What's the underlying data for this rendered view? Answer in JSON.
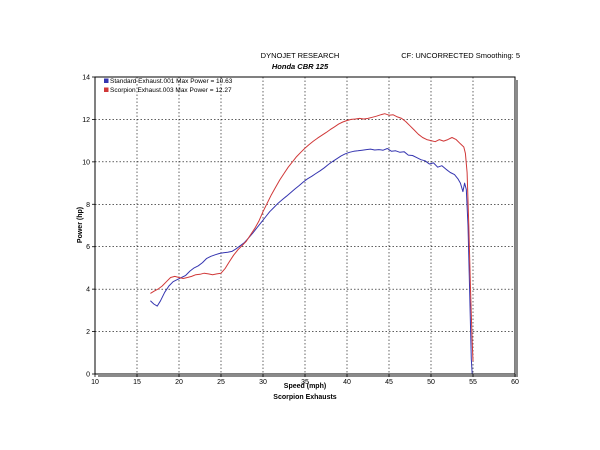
{
  "chart_data": {
    "type": "line",
    "title": "DYNOJET RESEARCH",
    "subtitle": "Honda CBR 125",
    "header_right": "CF: UNCORRECTED  Smoothing: 5",
    "footer": "Scorpion Exhausts",
    "xlabel": "Speed (mph)",
    "ylabel": "Power (hp)",
    "xlim": [
      10,
      60
    ],
    "ylim": [
      0,
      14
    ],
    "x_ticks": [
      "10",
      "15",
      "20",
      "25",
      "30",
      "35",
      "40",
      "45",
      "50",
      "55",
      "60"
    ],
    "y_ticks": [
      "0",
      "2",
      "4",
      "6",
      "8",
      "10",
      "12",
      "14"
    ],
    "grid": true,
    "legend_position": "top-left",
    "series": [
      {
        "name": "Standard Exhaust.001 Max Power = 10.63",
        "color": "#3535b0",
        "points": [
          [
            16.6,
            3.45
          ],
          [
            17.0,
            3.3
          ],
          [
            17.4,
            3.2
          ],
          [
            17.8,
            3.45
          ],
          [
            18.3,
            3.85
          ],
          [
            18.8,
            4.15
          ],
          [
            19.3,
            4.35
          ],
          [
            19.8,
            4.45
          ],
          [
            20.3,
            4.55
          ],
          [
            20.8,
            4.65
          ],
          [
            21.3,
            4.85
          ],
          [
            21.8,
            5.0
          ],
          [
            22.3,
            5.1
          ],
          [
            22.8,
            5.25
          ],
          [
            23.3,
            5.45
          ],
          [
            23.8,
            5.55
          ],
          [
            24.3,
            5.62
          ],
          [
            24.8,
            5.68
          ],
          [
            25.3,
            5.72
          ],
          [
            25.8,
            5.74
          ],
          [
            26.3,
            5.78
          ],
          [
            26.8,
            5.9
          ],
          [
            27.3,
            6.05
          ],
          [
            27.8,
            6.2
          ],
          [
            28.3,
            6.42
          ],
          [
            28.8,
            6.65
          ],
          [
            29.3,
            6.9
          ],
          [
            29.8,
            7.15
          ],
          [
            30.3,
            7.4
          ],
          [
            30.8,
            7.65
          ],
          [
            31.3,
            7.85
          ],
          [
            31.8,
            8.05
          ],
          [
            32.3,
            8.22
          ],
          [
            32.8,
            8.38
          ],
          [
            33.3,
            8.55
          ],
          [
            33.8,
            8.72
          ],
          [
            34.3,
            8.88
          ],
          [
            34.8,
            9.05
          ],
          [
            35.3,
            9.2
          ],
          [
            35.8,
            9.32
          ],
          [
            36.3,
            9.45
          ],
          [
            36.8,
            9.58
          ],
          [
            37.3,
            9.72
          ],
          [
            37.8,
            9.88
          ],
          [
            38.3,
            10.02
          ],
          [
            38.8,
            10.15
          ],
          [
            39.3,
            10.28
          ],
          [
            39.8,
            10.38
          ],
          [
            40.3,
            10.45
          ],
          [
            40.8,
            10.5
          ],
          [
            41.3,
            10.52
          ],
          [
            41.8,
            10.55
          ],
          [
            42.3,
            10.58
          ],
          [
            42.8,
            10.6
          ],
          [
            43.3,
            10.56
          ],
          [
            43.8,
            10.58
          ],
          [
            44.3,
            10.55
          ],
          [
            44.8,
            10.63
          ],
          [
            45.3,
            10.5
          ],
          [
            45.8,
            10.52
          ],
          [
            46.3,
            10.45
          ],
          [
            46.8,
            10.48
          ],
          [
            47.3,
            10.32
          ],
          [
            47.8,
            10.3
          ],
          [
            48.3,
            10.2
          ],
          [
            48.8,
            10.1
          ],
          [
            49.3,
            10.05
          ],
          [
            49.8,
            9.9
          ],
          [
            50.3,
            9.95
          ],
          [
            50.8,
            9.75
          ],
          [
            51.3,
            9.82
          ],
          [
            51.8,
            9.65
          ],
          [
            52.3,
            9.5
          ],
          [
            52.8,
            9.4
          ],
          [
            53.2,
            9.2
          ],
          [
            53.5,
            9.0
          ],
          [
            53.8,
            8.6
          ],
          [
            54.0,
            9.0
          ],
          [
            54.2,
            8.7
          ],
          [
            54.4,
            7.0
          ],
          [
            54.6,
            4.0
          ],
          [
            54.8,
            0.7
          ],
          [
            54.9,
            0.0
          ]
        ]
      },
      {
        "name": "Scorpion Exhaust.003 Max Power = 12.27",
        "color": "#d03838",
        "points": [
          [
            16.6,
            3.8
          ],
          [
            17.0,
            3.9
          ],
          [
            17.5,
            4.0
          ],
          [
            18.0,
            4.15
          ],
          [
            18.5,
            4.35
          ],
          [
            19.0,
            4.55
          ],
          [
            19.5,
            4.6
          ],
          [
            20.0,
            4.55
          ],
          [
            20.5,
            4.5
          ],
          [
            21.0,
            4.55
          ],
          [
            21.5,
            4.6
          ],
          [
            22.0,
            4.68
          ],
          [
            22.5,
            4.7
          ],
          [
            23.0,
            4.75
          ],
          [
            23.5,
            4.72
          ],
          [
            24.0,
            4.68
          ],
          [
            24.5,
            4.72
          ],
          [
            25.0,
            4.75
          ],
          [
            25.5,
            4.98
          ],
          [
            26.0,
            5.3
          ],
          [
            26.5,
            5.6
          ],
          [
            27.0,
            5.85
          ],
          [
            27.5,
            6.05
          ],
          [
            28.0,
            6.25
          ],
          [
            28.5,
            6.55
          ],
          [
            29.0,
            6.85
          ],
          [
            29.5,
            7.2
          ],
          [
            30.0,
            7.65
          ],
          [
            30.5,
            8.05
          ],
          [
            31.0,
            8.45
          ],
          [
            31.5,
            8.8
          ],
          [
            32.0,
            9.15
          ],
          [
            32.5,
            9.45
          ],
          [
            33.0,
            9.75
          ],
          [
            33.5,
            10.0
          ],
          [
            34.0,
            10.25
          ],
          [
            34.5,
            10.45
          ],
          [
            35.0,
            10.65
          ],
          [
            35.5,
            10.82
          ],
          [
            36.0,
            10.98
          ],
          [
            36.5,
            11.12
          ],
          [
            37.0,
            11.25
          ],
          [
            37.5,
            11.38
          ],
          [
            38.0,
            11.52
          ],
          [
            38.5,
            11.65
          ],
          [
            39.0,
            11.78
          ],
          [
            39.5,
            11.88
          ],
          [
            40.0,
            11.95
          ],
          [
            40.5,
            12.0
          ],
          [
            41.0,
            12.02
          ],
          [
            41.5,
            12.05
          ],
          [
            42.0,
            12.02
          ],
          [
            42.5,
            12.05
          ],
          [
            43.0,
            12.1
          ],
          [
            43.5,
            12.15
          ],
          [
            44.0,
            12.22
          ],
          [
            44.5,
            12.27
          ],
          [
            45.0,
            12.2
          ],
          [
            45.5,
            12.22
          ],
          [
            46.0,
            12.12
          ],
          [
            46.5,
            12.05
          ],
          [
            47.0,
            11.9
          ],
          [
            47.5,
            11.7
          ],
          [
            48.0,
            11.5
          ],
          [
            48.5,
            11.3
          ],
          [
            49.0,
            11.15
          ],
          [
            49.5,
            11.05
          ],
          [
            50.0,
            11.0
          ],
          [
            50.5,
            10.95
          ],
          [
            51.0,
            11.05
          ],
          [
            51.5,
            10.98
          ],
          [
            52.0,
            11.05
          ],
          [
            52.5,
            11.15
          ],
          [
            53.0,
            11.05
          ],
          [
            53.5,
            10.85
          ],
          [
            53.9,
            10.7
          ],
          [
            54.1,
            10.4
          ],
          [
            54.3,
            9.5
          ],
          [
            54.5,
            7.0
          ],
          [
            54.7,
            4.0
          ],
          [
            54.9,
            1.5
          ],
          [
            55.0,
            0.6
          ]
        ]
      }
    ]
  }
}
